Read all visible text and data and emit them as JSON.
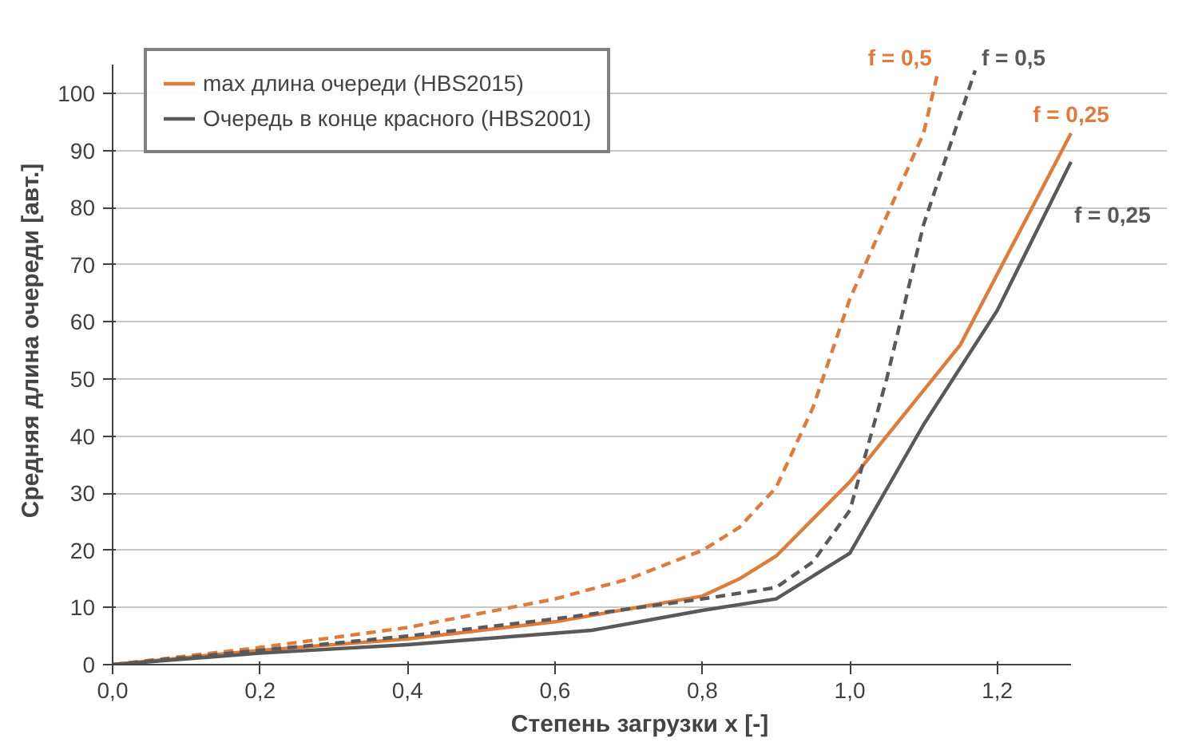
{
  "chart_data": {
    "type": "line",
    "xlabel": "Степень загрузки x [-]",
    "ylabel": "Средняя длина очереди [авт.]",
    "xlim": [
      0,
      1.3
    ],
    "ylim": [
      0,
      105
    ],
    "xticks": [
      {
        "value": 0,
        "label": "0,0"
      },
      {
        "value": 0.2,
        "label": "0,2"
      },
      {
        "value": 0.4,
        "label": "0,4"
      },
      {
        "value": 0.6,
        "label": "0,6"
      },
      {
        "value": 0.8,
        "label": "0,8"
      },
      {
        "value": 1.0,
        "label": "1,0"
      },
      {
        "value": 1.2,
        "label": "1,2"
      }
    ],
    "yticks": [
      0,
      10,
      20,
      30,
      40,
      50,
      60,
      70,
      80,
      90,
      100
    ],
    "grid": "y",
    "legend": "top left",
    "series": [
      {
        "name": "max длина очереди (HBS2015)",
        "color": "#e07b39",
        "line_style": "solid",
        "x": [
          0,
          0.2,
          0.4,
          0.6,
          0.8,
          0.85,
          0.9,
          1.0,
          1.1,
          1.15,
          1.3
        ],
        "values": [
          0,
          2.5,
          4.5,
          7.5,
          12,
          15,
          19,
          32,
          48,
          56,
          93
        ]
      },
      {
        "name": "Очередь в конце красного (HBS2001)",
        "color": "#595959",
        "line_style": "solid",
        "x": [
          0,
          0.2,
          0.4,
          0.65,
          0.8,
          0.9,
          1.0,
          1.1,
          1.2,
          1.3
        ],
        "values": [
          0,
          2,
          3.5,
          6,
          9.5,
          11.5,
          19.5,
          42,
          62,
          88
        ]
      },
      {
        "name": "f = 0,5",
        "color": "#e07b39",
        "line_style": "dashed",
        "x": [
          0,
          0.2,
          0.4,
          0.6,
          0.7,
          0.8,
          0.85,
          0.9,
          0.95,
          1.0,
          1.1,
          1.12
        ],
        "values": [
          0,
          3,
          6.5,
          11.5,
          15,
          20,
          24,
          31,
          45,
          64,
          93,
          104
        ]
      },
      {
        "name": "f = 0,5",
        "color": "#595959",
        "line_style": "dashed",
        "x": [
          0,
          0.2,
          0.4,
          0.6,
          0.8,
          0.9,
          0.95,
          1.0,
          1.05,
          1.1,
          1.17
        ],
        "values": [
          0,
          2.5,
          5,
          8,
          11.5,
          13.5,
          18,
          27,
          50,
          77,
          104
        ]
      }
    ],
    "annotations": [
      {
        "text": "f = 0,25",
        "x": 1.3,
        "y": 93
      },
      {
        "text": "f = 0,25",
        "x": 1.3,
        "y": 88
      }
    ]
  }
}
